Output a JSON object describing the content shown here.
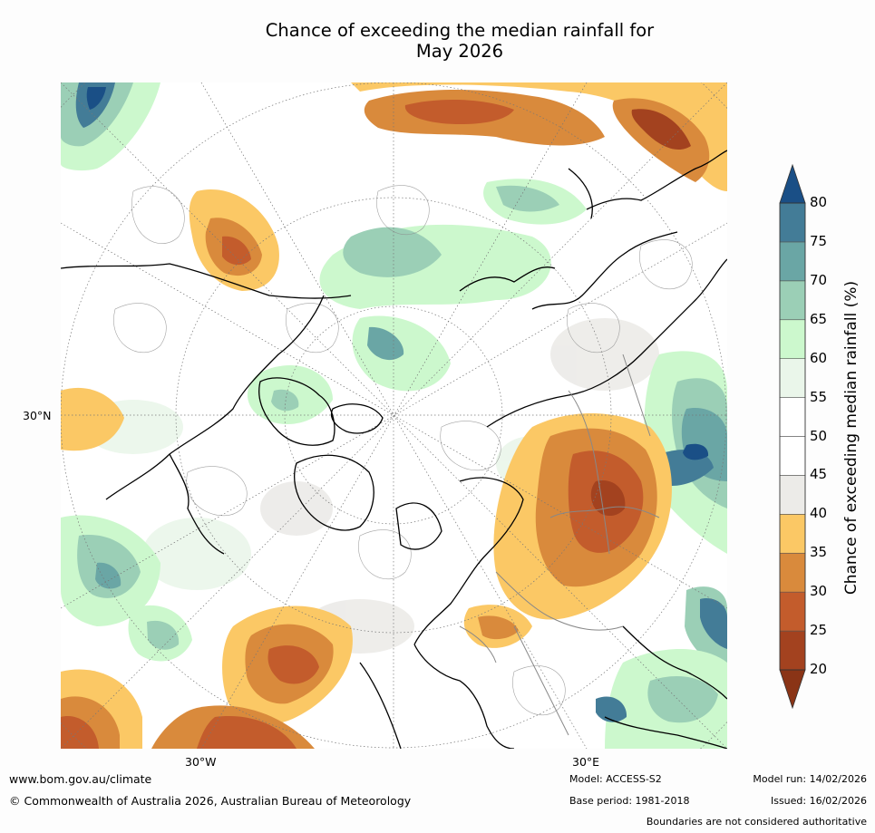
{
  "title_line1": "Chance of exceeding the median rainfall for",
  "title_line2": "May 2026",
  "map": {
    "projection": "north-polar-stereographic",
    "lat_label": "30°N",
    "lon_labels": [
      "30°W",
      "30°E"
    ],
    "regions": [
      {
        "name": "eastern-europe-russia-dry",
        "category": "below",
        "color": "#d08a3e"
      },
      {
        "name": "siberia-wet",
        "category": "above",
        "color": "#5a95a8"
      },
      {
        "name": "north-atlantic-dry",
        "category": "below",
        "color": "#d08a3e"
      },
      {
        "name": "north-pacific-dry",
        "category": "below",
        "color": "#d08a3e"
      },
      {
        "name": "arctic-wet",
        "category": "above",
        "color": "#9dd0b9"
      }
    ]
  },
  "colorbar": {
    "title": "Chance of exceeding median rainfall (%)",
    "levels": [
      "20",
      "25",
      "30",
      "35",
      "40",
      "45",
      "50",
      "55",
      "60",
      "65",
      "70",
      "75",
      "80"
    ],
    "colors": [
      "#a3421f",
      "#c35c2c",
      "#d98a3c",
      "#fbc865",
      "#ecebe8",
      "#ffffff",
      "#ffffff",
      "#eaf6ea",
      "#ccf8cd",
      "#9bcfb6",
      "#6aa6a5",
      "#437c97"
    ],
    "under_color": "#8a3416",
    "over_color": "#1a4f86"
  },
  "footer": {
    "url": "www.bom.gov.au/climate",
    "copyright": "© Commonwealth of Australia 2026, Australian Bureau of Meteorology",
    "model": "Model: ACCESS-S2",
    "base_period": "Base period: 1981-2018",
    "model_run": "Model run: 14/02/2026",
    "issued": "Issued: 16/02/2026",
    "disclaimer": "Boundaries are not considered authoritative"
  }
}
